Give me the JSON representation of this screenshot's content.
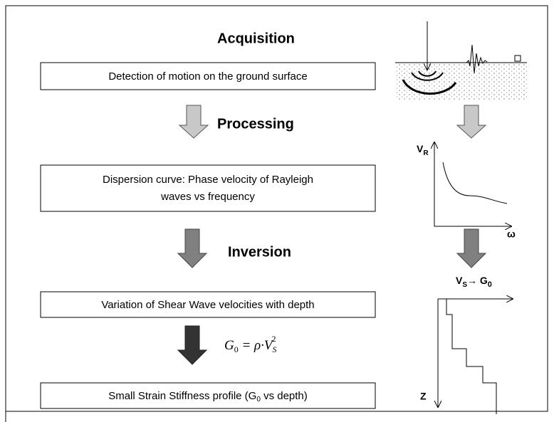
{
  "stages": [
    "Acquisition",
    "Processing",
    "Inversion"
  ],
  "boxes": [
    "Detection of motion on the ground surface",
    [
      "Dispersion curve: Phase velocity of Rayleigh",
      "waves vs frequency"
    ],
    "Variation of Shear Wave velocities with depth",
    [
      "Small Strain Stiffness profile  (G",
      "0",
      " vs depth)"
    ]
  ],
  "formula": [
    "G",
    "0",
    " = ρ·V",
    "S",
    "2"
  ],
  "axis_labels": {
    "vr": [
      "V",
      "R"
    ],
    "omega": "ω",
    "vs_g0": [
      "V",
      "S",
      "→ G",
      "0"
    ],
    "z": "Z"
  }
}
